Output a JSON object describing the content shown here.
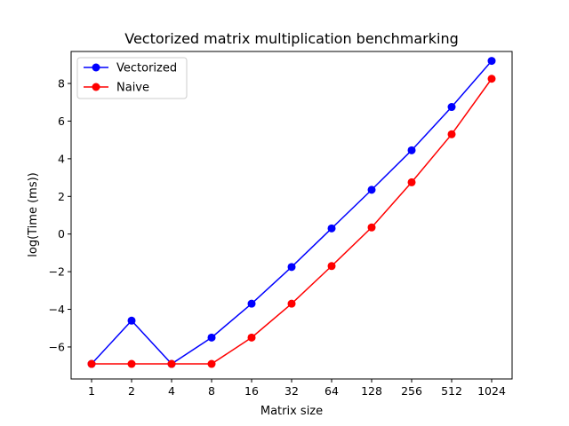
{
  "chart_data": {
    "type": "line",
    "title": "Vectorized matrix multiplication benchmarking",
    "xlabel": "Matrix size",
    "ylabel": "log(Time (ms))",
    "categories": [
      "1",
      "2",
      "4",
      "8",
      "16",
      "32",
      "64",
      "128",
      "256",
      "512",
      "1024"
    ],
    "yticks": [
      -6,
      -4,
      -2,
      0,
      2,
      4,
      6,
      8
    ],
    "ytick_labels": [
      "−6",
      "−4",
      "−2",
      "0",
      "2",
      "4",
      "6",
      "8"
    ],
    "ylim": [
      -7.7,
      9.7
    ],
    "grid": false,
    "legend_position": "top-left",
    "series": [
      {
        "name": "Vectorized",
        "color": "#0000ff",
        "values": [
          -6.9,
          -4.6,
          -6.9,
          -5.5,
          -3.7,
          -1.75,
          0.3,
          2.35,
          4.45,
          6.75,
          9.2
        ]
      },
      {
        "name": "Naive",
        "color": "#ff0000",
        "values": [
          -6.9,
          -6.9,
          -6.9,
          -6.9,
          -5.5,
          -3.7,
          -1.7,
          0.35,
          2.75,
          5.3,
          8.25
        ]
      }
    ]
  }
}
